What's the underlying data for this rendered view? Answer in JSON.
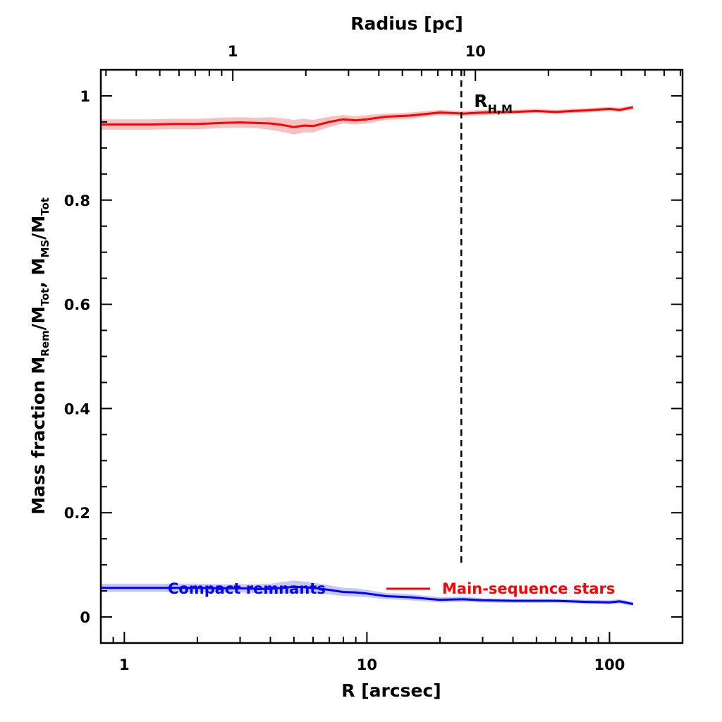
{
  "chart_data": {
    "type": "line",
    "xscale": "log",
    "xlim": [
      0.8,
      200
    ],
    "ylim": [
      -0.05,
      1.05
    ],
    "xlabel": "R [arcsec]",
    "ylabel_parts": [
      "Mass fraction   M",
      "Rem",
      "/M",
      "Tot",
      ",  M",
      "MS",
      "/M",
      "Tot"
    ],
    "top_axis": {
      "title": "Radius [pc]",
      "ticks": [
        {
          "label": "1",
          "x_arcsec": 2.8
        },
        {
          "label": "10",
          "x_arcsec": 28
        }
      ]
    },
    "x_tick_labels": [
      {
        "label": "1",
        "x": 1
      },
      {
        "label": "10",
        "x": 10
      },
      {
        "label": "100",
        "x": 100
      }
    ],
    "y_tick_labels": [
      {
        "label": "0",
        "y": 0
      },
      {
        "label": "0.2",
        "y": 0.2
      },
      {
        "label": "0.4",
        "y": 0.4
      },
      {
        "label": "0.6",
        "y": 0.6
      },
      {
        "label": "0.8",
        "y": 0.8
      },
      {
        "label": "1",
        "y": 1
      }
    ],
    "vline": {
      "x": 24.5,
      "ymin": 0.1,
      "ymax": 1.05,
      "label_main": "R",
      "label_sub": "H,M"
    },
    "series": [
      {
        "name": "Main-sequence stars",
        "color": "#ff0000",
        "band_color": "#f4a6a6",
        "x": [
          0.8,
          1.0,
          1.3,
          1.6,
          2.0,
          2.5,
          3.0,
          3.5,
          4.0,
          4.5,
          5.0,
          5.5,
          6.0,
          7.0,
          8.0,
          9.0,
          10.0,
          12.0,
          15.0,
          20.0,
          25.0,
          30.0,
          40.0,
          50.0,
          60.0,
          70.0,
          80.0,
          100.0,
          110.0,
          125.0
        ],
        "y": [
          0.945,
          0.945,
          0.945,
          0.946,
          0.946,
          0.948,
          0.949,
          0.948,
          0.947,
          0.944,
          0.94,
          0.943,
          0.942,
          0.95,
          0.955,
          0.953,
          0.955,
          0.96,
          0.962,
          0.968,
          0.966,
          0.968,
          0.969,
          0.971,
          0.969,
          0.971,
          0.972,
          0.975,
          0.973,
          0.978
        ],
        "band": [
          0.01,
          0.01,
          0.01,
          0.01,
          0.01,
          0.01,
          0.01,
          0.01,
          0.012,
          0.013,
          0.014,
          0.013,
          0.012,
          0.01,
          0.008,
          0.008,
          0.008,
          0.006,
          0.006,
          0.005,
          0.005,
          0.005,
          0.004,
          0.004,
          0.004,
          0.004,
          0.004,
          0.004,
          0.004,
          0.004
        ]
      },
      {
        "name": "Compact remnants",
        "color": "#0000ff",
        "band_color": "#b0b0f0",
        "x": [
          0.8,
          1.0,
          1.3,
          1.6,
          2.0,
          2.5,
          3.0,
          3.5,
          4.0,
          4.5,
          5.0,
          5.5,
          6.0,
          7.0,
          8.0,
          9.0,
          10.0,
          12.0,
          15.0,
          20.0,
          25.0,
          30.0,
          40.0,
          50.0,
          60.0,
          70.0,
          80.0,
          100.0,
          110.0,
          125.0
        ],
        "y": [
          0.056,
          0.056,
          0.056,
          0.056,
          0.056,
          0.055,
          0.055,
          0.054,
          0.054,
          0.056,
          0.058,
          0.057,
          0.056,
          0.052,
          0.048,
          0.047,
          0.045,
          0.04,
          0.038,
          0.033,
          0.034,
          0.032,
          0.031,
          0.031,
          0.031,
          0.03,
          0.029,
          0.028,
          0.03,
          0.025
        ],
        "band": [
          0.008,
          0.008,
          0.008,
          0.008,
          0.008,
          0.008,
          0.008,
          0.009,
          0.01,
          0.011,
          0.012,
          0.011,
          0.01,
          0.009,
          0.008,
          0.008,
          0.007,
          0.006,
          0.006,
          0.005,
          0.005,
          0.004,
          0.004,
          0.004,
          0.004,
          0.004,
          0.004,
          0.004,
          0.004,
          0.004
        ]
      }
    ],
    "legend": [
      {
        "label": "Compact remnants",
        "color": "#0000ff"
      },
      {
        "label": "Main-sequence stars",
        "color": "#ff0000"
      }
    ]
  }
}
